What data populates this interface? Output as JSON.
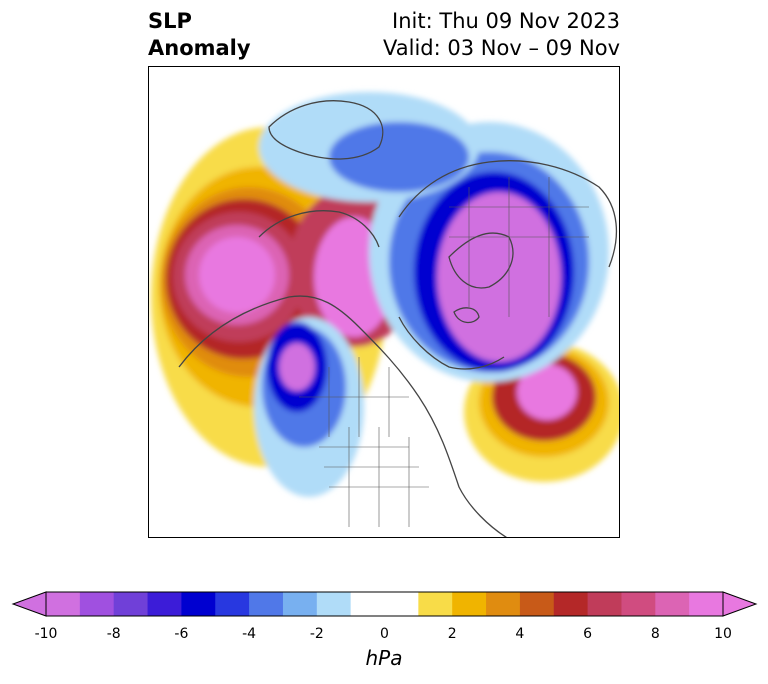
{
  "title": {
    "left_line1": "SLP",
    "left_line2": "Anomaly",
    "right_line1": "Init: Thu 09 Nov 2023",
    "right_line2": "Valid: 03 Nov – 09 Nov"
  },
  "colorbar": {
    "units": "hPa",
    "ticks": [
      "-10",
      "-8",
      "-6",
      "-4",
      "-2",
      "0",
      "2",
      "4",
      "6",
      "8",
      "10"
    ],
    "colors": [
      "#d070e0",
      "#a050e0",
      "#7040d8",
      "#3c1cd8",
      "#0000d0",
      "#2838e0",
      "#5078e8",
      "#78b0f0",
      "#b0dcf8",
      "#ffffff",
      "#ffffff",
      "#f8dc48",
      "#f0b400",
      "#e08c10",
      "#c85a18",
      "#b42828",
      "#c03c5a",
      "#d04c80",
      "#dc64b4",
      "#e878e0"
    ],
    "extend_low": "#d070e0",
    "extend_high": "#e878e0"
  }
}
